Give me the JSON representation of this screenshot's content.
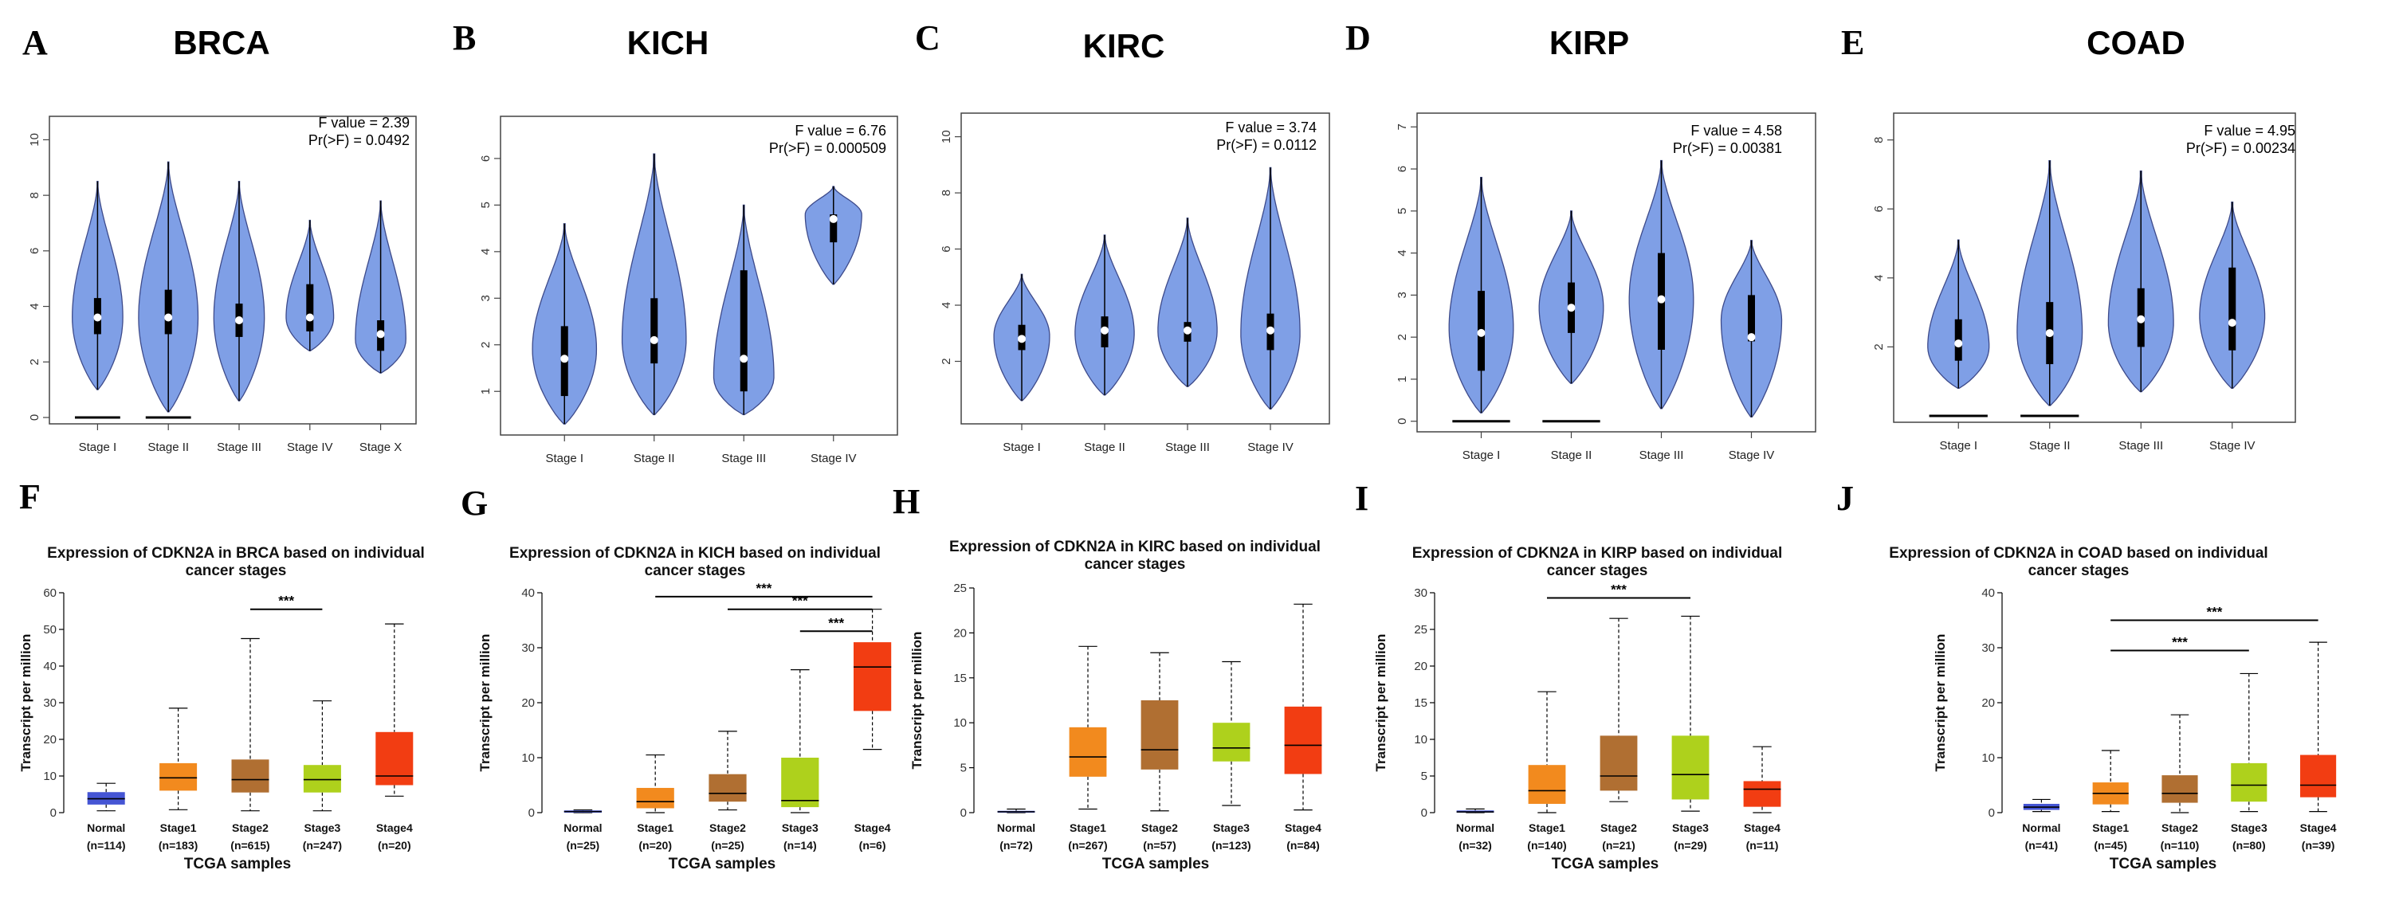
{
  "colors": {
    "violin_fill": "#7f9fe6",
    "violin_stroke": "#3d4a8a",
    "box_colors": [
      "#4555d4",
      "#f28a1e",
      "#b06f32",
      "#aed11c",
      "#f23d12"
    ]
  },
  "chart_data": [
    {
      "type": "violin",
      "letter": "A",
      "title": "BRCA",
      "stat1": "F value = 2.39",
      "stat2": "Pr(>F) = 0.0492",
      "ylim": [
        0,
        10.5
      ],
      "yticks": [
        0,
        2,
        4,
        6,
        8,
        10
      ],
      "categories": [
        "Stage I",
        "Stage II",
        "Stage III",
        "Stage IV",
        "Stage X"
      ],
      "violins": [
        {
          "min": 1.0,
          "max": 8.5,
          "q1": 3.0,
          "median": 3.6,
          "q3": 4.3,
          "peak": 3.6,
          "width": 0.85
        },
        {
          "min": 0.2,
          "max": 9.2,
          "q1": 3.0,
          "median": 3.6,
          "q3": 4.6,
          "peak": 3.6,
          "width": 1.0
        },
        {
          "min": 0.6,
          "max": 8.5,
          "q1": 2.9,
          "median": 3.5,
          "q3": 4.1,
          "peak": 3.6,
          "width": 0.85
        },
        {
          "min": 2.4,
          "max": 7.1,
          "q1": 3.1,
          "median": 3.6,
          "q3": 4.8,
          "peak": 3.6,
          "width": 0.8
        },
        {
          "min": 1.6,
          "max": 7.8,
          "q1": 2.4,
          "median": 3.0,
          "q3": 3.5,
          "peak": 2.8,
          "width": 0.85
        }
      ],
      "zero_lines": [
        0,
        1
      ]
    },
    {
      "type": "violin",
      "letter": "B",
      "title": "KICH",
      "stat1": "F value = 6.76",
      "stat2": "Pr(>F) = 0.000509",
      "ylim": [
        0.2,
        6.7
      ],
      "yticks": [
        1,
        2,
        3,
        4,
        5,
        6
      ],
      "categories": [
        "Stage I",
        "Stage II",
        "Stage III",
        "Stage IV"
      ],
      "violins": [
        {
          "min": 0.3,
          "max": 4.6,
          "q1": 0.9,
          "median": 1.7,
          "q3": 2.4,
          "peak": 1.9,
          "width": 0.85
        },
        {
          "min": 0.5,
          "max": 6.1,
          "q1": 1.6,
          "median": 2.1,
          "q3": 3.0,
          "peak": 2.1,
          "width": 0.85
        },
        {
          "min": 0.5,
          "max": 5.0,
          "q1": 1.0,
          "median": 1.7,
          "q3": 3.6,
          "peak": 1.3,
          "width": 0.8
        },
        {
          "min": 3.3,
          "max": 5.4,
          "q1": 4.2,
          "median": 4.7,
          "q3": 4.8,
          "peak": 4.8,
          "width": 0.75
        }
      ],
      "zero_lines": []
    },
    {
      "type": "violin",
      "letter": "C",
      "title": "KIRC",
      "stat1": "F value = 3.74",
      "stat2": "Pr(>F) = 0.0112",
      "ylim": [
        0,
        10.5
      ],
      "yticks": [
        2,
        4,
        6,
        8,
        10
      ],
      "categories": [
        "Stage I",
        "Stage II",
        "Stage III",
        "Stage IV"
      ],
      "violins": [
        {
          "min": 0.6,
          "max": 5.1,
          "q1": 2.4,
          "median": 2.8,
          "q3": 3.3,
          "peak": 2.9,
          "width": 0.8
        },
        {
          "min": 0.8,
          "max": 6.5,
          "q1": 2.5,
          "median": 3.1,
          "q3": 3.6,
          "peak": 3.0,
          "width": 0.85
        },
        {
          "min": 1.1,
          "max": 7.1,
          "q1": 2.7,
          "median": 3.1,
          "q3": 3.4,
          "peak": 3.1,
          "width": 0.85
        },
        {
          "min": 0.3,
          "max": 8.9,
          "q1": 2.4,
          "median": 3.1,
          "q3": 3.7,
          "peak": 3.0,
          "width": 0.85
        }
      ],
      "zero_lines": []
    },
    {
      "type": "violin",
      "letter": "D",
      "title": "KIRP",
      "stat1": "F value = 4.58",
      "stat2": "Pr(>F) = 0.00381",
      "ylim": [
        -0.1,
        7.1
      ],
      "yticks": [
        0,
        1,
        2,
        3,
        4,
        5,
        6,
        7
      ],
      "categories": [
        "Stage I",
        "Stage II",
        "Stage III",
        "Stage IV"
      ],
      "violins": [
        {
          "min": 0.2,
          "max": 5.8,
          "q1": 1.2,
          "median": 2.1,
          "q3": 3.1,
          "peak": 2.2,
          "width": 0.85
        },
        {
          "min": 0.9,
          "max": 5.0,
          "q1": 2.1,
          "median": 2.7,
          "q3": 3.3,
          "peak": 2.7,
          "width": 0.85
        },
        {
          "min": 0.3,
          "max": 6.2,
          "q1": 1.7,
          "median": 2.9,
          "q3": 4.0,
          "peak": 2.9,
          "width": 0.85
        },
        {
          "min": 0.1,
          "max": 4.3,
          "q1": 1.9,
          "median": 2.0,
          "q3": 3.0,
          "peak": 2.4,
          "width": 0.8
        }
      ],
      "zero_lines": [
        0,
        1
      ]
    },
    {
      "type": "violin",
      "letter": "E",
      "title": "COAD",
      "stat1": "F value = 4.95",
      "stat2": "Pr(>F) = 0.00234",
      "ylim": [
        0,
        8.5
      ],
      "yticks": [
        2,
        4,
        6,
        8
      ],
      "categories": [
        "Stage I",
        "Stage II",
        "Stage III",
        "Stage IV"
      ],
      "violins": [
        {
          "min": 0.8,
          "max": 5.1,
          "q1": 1.6,
          "median": 2.1,
          "q3": 2.8,
          "peak": 2.0,
          "width": 0.8
        },
        {
          "min": 0.3,
          "max": 7.4,
          "q1": 1.5,
          "median": 2.4,
          "q3": 3.3,
          "peak": 2.4,
          "width": 0.85
        },
        {
          "min": 0.7,
          "max": 7.1,
          "q1": 2.0,
          "median": 2.8,
          "q3": 3.7,
          "peak": 2.7,
          "width": 0.85
        },
        {
          "min": 0.8,
          "max": 6.2,
          "q1": 1.9,
          "median": 2.7,
          "q3": 4.3,
          "peak": 2.9,
          "width": 0.85
        }
      ],
      "zero_lines": [
        0,
        1
      ]
    },
    {
      "type": "box",
      "letter": "F",
      "title_lines": [
        "Expression of CDKN2A in BRCA based on individual",
        "cancer stages"
      ],
      "ylabel": "Transcript per million",
      "xlabel": "TCGA samples",
      "ylim": [
        0,
        60
      ],
      "yticks": [
        0,
        10,
        20,
        30,
        40,
        50,
        60
      ],
      "categories": [
        "Normal",
        "Stage1",
        "Stage2",
        "Stage3",
        "Stage4"
      ],
      "counts": [
        "(n=114)",
        "(n=183)",
        "(n=615)",
        "(n=247)",
        "(n=20)"
      ],
      "boxes": [
        {
          "min": 0.5,
          "q1": 2.2,
          "median": 3.8,
          "q3": 5.6,
          "max": 8.0
        },
        {
          "min": 0.8,
          "q1": 6.0,
          "median": 9.5,
          "q3": 13.5,
          "max": 28.5
        },
        {
          "min": 0.5,
          "q1": 5.5,
          "median": 9.0,
          "q3": 14.5,
          "max": 47.5
        },
        {
          "min": 0.5,
          "q1": 5.5,
          "median": 9.0,
          "q3": 13.0,
          "max": 30.5
        },
        {
          "min": 4.5,
          "q1": 7.5,
          "median": 10.0,
          "q3": 22.0,
          "max": 51.5
        }
      ],
      "brackets": [
        {
          "from": 2,
          "to": 3,
          "y": 55.5,
          "label": "***"
        }
      ]
    },
    {
      "type": "box",
      "letter": "G",
      "title_lines": [
        "Expression of CDKN2A in KICH based on individual",
        "cancer stages"
      ],
      "ylabel": "Transcript per million",
      "xlabel": "TCGA samples",
      "ylim": [
        0,
        40
      ],
      "yticks": [
        0,
        10,
        20,
        30,
        40
      ],
      "categories": [
        "Normal",
        "Stage1",
        "Stage2",
        "Stage3",
        "Stage4"
      ],
      "counts": [
        "(n=25)",
        "(n=20)",
        "(n=25)",
        "(n=14)",
        "(n=6)"
      ],
      "boxes": [
        {
          "min": 0.0,
          "q1": 0.0,
          "median": 0.2,
          "q3": 0.4,
          "max": 0.5
        },
        {
          "min": 0.0,
          "q1": 0.8,
          "median": 2.0,
          "q3": 4.5,
          "max": 10.5
        },
        {
          "min": 0.5,
          "q1": 2.0,
          "median": 3.5,
          "q3": 7.0,
          "max": 14.8
        },
        {
          "min": 0.0,
          "q1": 1.0,
          "median": 2.2,
          "q3": 10.0,
          "max": 26.0
        },
        {
          "min": 11.5,
          "q1": 18.5,
          "median": 26.5,
          "q3": 31.0,
          "max": 37.0
        }
      ],
      "brackets": [
        {
          "from": 1,
          "to": 4,
          "y": 39.3,
          "label": "***"
        },
        {
          "from": 2,
          "to": 4,
          "y": 37.0,
          "label": "***"
        },
        {
          "from": 3,
          "to": 4,
          "y": 33.0,
          "label": "***"
        }
      ]
    },
    {
      "type": "box",
      "letter": "H",
      "title_lines": [
        "Expression of CDKN2A in KIRC based on individual",
        "cancer stages"
      ],
      "ylabel": "Transcript per million",
      "xlabel": "TCGA samples",
      "ylim": [
        0,
        25
      ],
      "yticks": [
        0,
        5,
        10,
        15,
        20,
        25
      ],
      "categories": [
        "Normal",
        "Stage1",
        "Stage2",
        "Stage3",
        "Stage4"
      ],
      "counts": [
        "(n=72)",
        "(n=267)",
        "(n=57)",
        "(n=123)",
        "(n=84)"
      ],
      "boxes": [
        {
          "min": 0.0,
          "q1": 0.0,
          "median": 0.1,
          "q3": 0.2,
          "max": 0.4
        },
        {
          "min": 0.4,
          "q1": 4.0,
          "median": 6.2,
          "q3": 9.5,
          "max": 18.5
        },
        {
          "min": 0.2,
          "q1": 4.8,
          "median": 7.0,
          "q3": 12.5,
          "max": 17.8
        },
        {
          "min": 0.8,
          "q1": 5.7,
          "median": 7.2,
          "q3": 10.0,
          "max": 16.8
        },
        {
          "min": 0.3,
          "q1": 4.3,
          "median": 7.5,
          "q3": 11.8,
          "max": 23.2
        }
      ],
      "brackets": []
    },
    {
      "type": "box",
      "letter": "I",
      "title_lines": [
        "Expression of CDKN2A in KIRP based on individual",
        "cancer stages"
      ],
      "ylabel": "Transcript per million",
      "xlabel": "TCGA samples",
      "ylim": [
        0,
        30
      ],
      "yticks": [
        0,
        5,
        10,
        15,
        20,
        25,
        30
      ],
      "categories": [
        "Normal",
        "Stage1",
        "Stage2",
        "Stage3",
        "Stage4"
      ],
      "counts": [
        "(n=32)",
        "(n=140)",
        "(n=21)",
        "(n=29)",
        "(n=11)"
      ],
      "boxes": [
        {
          "min": 0.0,
          "q1": 0.0,
          "median": 0.1,
          "q3": 0.3,
          "max": 0.5
        },
        {
          "min": 0.0,
          "q1": 1.2,
          "median": 3.0,
          "q3": 6.5,
          "max": 16.5
        },
        {
          "min": 1.5,
          "q1": 3.0,
          "median": 5.0,
          "q3": 10.5,
          "max": 26.5
        },
        {
          "min": 0.2,
          "q1": 1.8,
          "median": 5.2,
          "q3": 10.5,
          "max": 26.8
        },
        {
          "min": 0.0,
          "q1": 0.8,
          "median": 3.2,
          "q3": 4.3,
          "max": 9.0
        }
      ],
      "brackets": [
        {
          "from": 1,
          "to": 3,
          "y": 29.3,
          "label": "***"
        }
      ]
    },
    {
      "type": "box",
      "letter": "J",
      "title_lines": [
        "Expression of CDKN2A in COAD based on individual",
        "cancer stages"
      ],
      "ylabel": "Transcript per million",
      "xlabel": "TCGA samples",
      "ylim": [
        0,
        40
      ],
      "yticks": [
        0,
        10,
        20,
        30,
        40
      ],
      "categories": [
        "Normal",
        "Stage1",
        "Stage2",
        "Stage3",
        "Stage4"
      ],
      "counts": [
        "(n=41)",
        "(n=45)",
        "(n=110)",
        "(n=80)",
        "(n=39)"
      ],
      "boxes": [
        {
          "min": 0.2,
          "q1": 0.5,
          "median": 1.0,
          "q3": 1.6,
          "max": 2.4
        },
        {
          "min": 0.2,
          "q1": 1.5,
          "median": 3.5,
          "q3": 5.5,
          "max": 11.3
        },
        {
          "min": 0.0,
          "q1": 1.8,
          "median": 3.5,
          "q3": 6.8,
          "max": 17.8
        },
        {
          "min": 0.2,
          "q1": 2.0,
          "median": 5.0,
          "q3": 9.0,
          "max": 25.3
        },
        {
          "min": 0.2,
          "q1": 2.8,
          "median": 5.0,
          "q3": 10.5,
          "max": 31.0
        }
      ],
      "brackets": [
        {
          "from": 1,
          "to": 4,
          "y": 35.0,
          "label": "***"
        },
        {
          "from": 1,
          "to": 3,
          "y": 29.5,
          "label": "***"
        }
      ]
    }
  ]
}
